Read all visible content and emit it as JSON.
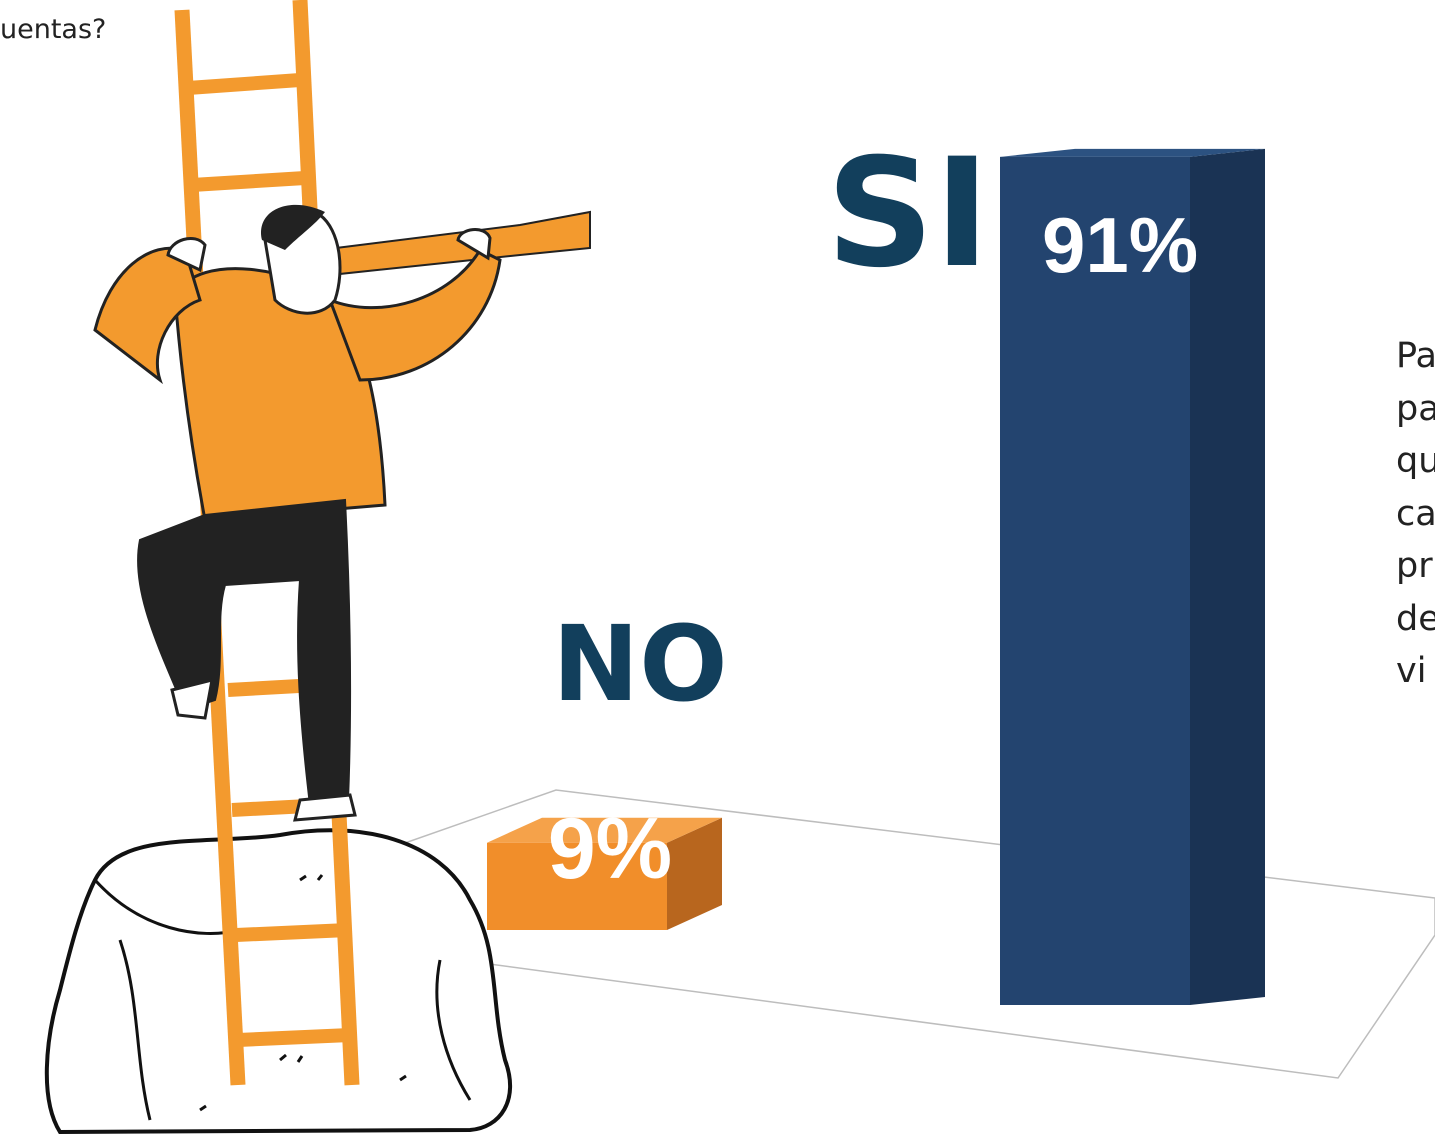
{
  "header": {
    "question_fragment": "uentas?"
  },
  "side_text": {
    "lines": [
      "Pa",
      "pa",
      "qu",
      "ca",
      "pr",
      "de",
      "vi"
    ]
  },
  "colors": {
    "si_bar": "#23446f",
    "no_bar": "#f18e2a",
    "label": "#123f5c",
    "figure_accent": "#f39a2e"
  },
  "illustration": {
    "description_icons": [
      "person-climbing-ladder-icon",
      "telescope-icon",
      "rock-icon"
    ]
  },
  "chart_data": {
    "type": "bar",
    "categories": [
      "NO",
      "SI"
    ],
    "values": [
      9,
      91
    ],
    "value_labels": [
      "9%",
      "91%"
    ],
    "ylim": [
      0,
      100
    ],
    "grid": false,
    "legend": "none"
  }
}
